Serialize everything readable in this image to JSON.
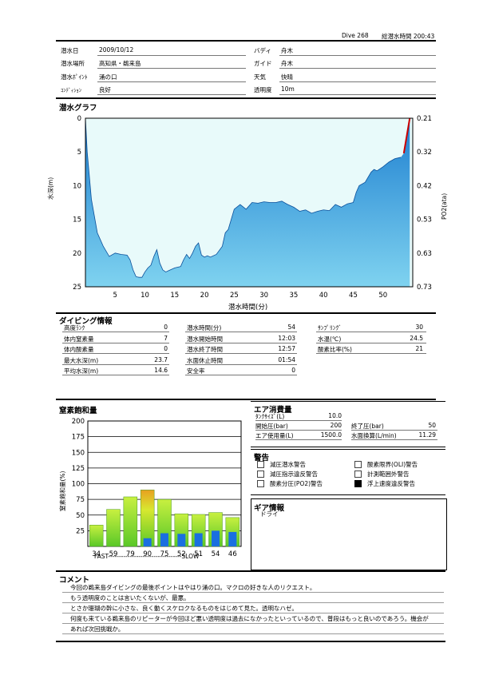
{
  "header": {
    "dive_label": "Dive 268",
    "total_label": "総潜水時間 200:43"
  },
  "info": {
    "rows": [
      {
        "label": "潜水日",
        "value": "2009/10/12",
        "label2": "バディ",
        "value2": "舟木"
      },
      {
        "label": "潜水場所",
        "value": "高知県・鵜来島",
        "label2": "ガイド",
        "value2": "舟木"
      },
      {
        "label": "潜水ﾎﾟｲﾝﾄ",
        "value": "涌の口",
        "label2": "天気",
        "value2": "快晴"
      },
      {
        "label": "ｺﾝﾃﾞｨｼｮﾝ",
        "value": "良好",
        "label2": "透明度",
        "value2": "10m"
      }
    ]
  },
  "graph": {
    "title": "潜水グラフ",
    "ylabel_left": "水深(m)",
    "ylabel_right": "PO2(ata)",
    "xlabel": "潜水時間(分)",
    "colors": {
      "water_top": "#1e7fd0",
      "water_bottom": "#7fd3f0",
      "sky": "#e8fafa",
      "ascent": "#cc0000"
    }
  },
  "chart_data": [
    {
      "type": "area",
      "title": "潜水グラフ",
      "xlabel": "潜水時間(分)",
      "ylabel": "水深(m)",
      "y2label": "PO2(ata)",
      "xlim": [
        0,
        55
      ],
      "ylim": [
        25,
        0
      ],
      "y2lim": [
        0.73,
        0.21
      ],
      "x_ticks": [
        "5",
        "10",
        "15",
        "20",
        "25",
        "30",
        "35",
        "40",
        "45",
        "50"
      ],
      "y_ticks": [
        "0",
        "5",
        "10",
        "15",
        "20",
        "25"
      ],
      "y2_ticks": [
        "0.21",
        "0.32",
        "0.42",
        "0.53",
        "0.63",
        "0.73"
      ],
      "x": [
        0,
        0.3,
        1,
        2,
        3,
        4,
        5,
        6,
        7,
        7.5,
        8,
        8.5,
        9,
        9.5,
        10,
        10.5,
        11,
        11.5,
        12,
        12.5,
        13,
        13.5,
        14,
        15,
        16,
        16.5,
        17,
        17.5,
        18,
        18.5,
        19,
        19.5,
        20,
        20.5,
        21,
        22,
        23,
        23.5,
        24,
        25,
        26,
        27,
        28,
        29,
        30,
        31,
        32,
        33,
        34,
        35,
        36,
        37,
        38,
        39,
        40,
        41,
        42,
        43,
        44,
        45,
        45.5,
        46,
        47,
        48,
        48.5,
        49,
        50,
        51,
        52,
        53,
        53.5,
        54,
        54.5
      ],
      "y": [
        0,
        5,
        12,
        17,
        19,
        20.5,
        20,
        20.2,
        20.3,
        21,
        22.5,
        23.5,
        23.6,
        23.6,
        22.8,
        22.2,
        21.8,
        20.5,
        19.5,
        21.5,
        22.5,
        22.8,
        22.6,
        22.2,
        22,
        21,
        20.2,
        20.8,
        20,
        19,
        18.5,
        20.3,
        20.6,
        20.4,
        20.6,
        20.2,
        19,
        17,
        16.5,
        13.5,
        12.8,
        13.5,
        12.5,
        12.6,
        12.4,
        12.5,
        12.5,
        12.3,
        12.8,
        13.2,
        13.8,
        13.6,
        14.1,
        13.8,
        13.6,
        13.7,
        12.8,
        13.2,
        12.7,
        12.5,
        11,
        10,
        9.5,
        8,
        7.6,
        7.8,
        7.2,
        6.5,
        6,
        5.8,
        5.2,
        2.6,
        0
      ]
    },
    {
      "type": "bar",
      "title": "窒素飽和量",
      "ylabel": "窒素飽和量(%)",
      "categories": [
        "34",
        "59",
        "79",
        "90",
        "75",
        "52",
        "51",
        "54",
        "46"
      ],
      "series": [
        {
          "values": [
            34,
            59,
            79,
            90,
            75,
            52,
            51,
            54,
            46
          ]
        },
        {
          "values": [
            0,
            0,
            0,
            13,
            21,
            20,
            21,
            25,
            23
          ]
        }
      ],
      "ylim": [
        0,
        200
      ],
      "y_ticks": [
        "25",
        "50",
        "75",
        "100",
        "125",
        "150",
        "175",
        "200"
      ],
      "footer": "FAST----------------------------------SLOW"
    }
  ],
  "diving_info": {
    "title": "ダイビング情報",
    "col1": [
      {
        "label": "高度ﾗﾝｸ",
        "value": "0"
      },
      {
        "label": "体内窒素量",
        "value": "7"
      },
      {
        "label": "体内酸素量",
        "value": "0"
      },
      {
        "label": "最大水深(m)",
        "value": "23.7"
      },
      {
        "label": "平均水深(m)",
        "value": "14.6"
      }
    ],
    "col2": [
      {
        "label": "潜水時間(分)",
        "value": "54"
      },
      {
        "label": "潜水開始時間",
        "value": "12:03"
      },
      {
        "label": "潜水終了時間",
        "value": "12:57"
      },
      {
        "label": "水面休止時間",
        "value": "01:54"
      },
      {
        "label": "安全率",
        "value": "0"
      }
    ],
    "col3": [
      {
        "label": "ｻﾝﾌﾟﾘﾝｸﾞ",
        "value": "30"
      },
      {
        "label": "水温(℃)",
        "value": "24.5"
      },
      {
        "label": "酸素比率(%)",
        "value": "21"
      }
    ]
  },
  "nitrogen": {
    "title": "窒素飽和量",
    "ylabel": "窒素飽和量(%)",
    "footer": "FAST----------------------------------SLOW"
  },
  "air": {
    "title": "エア消費量",
    "tank_label": "ﾀﾝｸｻｲｽﾞ(L)",
    "tank_value": "10.0",
    "start_label": "開始圧(bar)",
    "start_value": "200",
    "end_label": "終了圧(bar)",
    "end_value": "50",
    "used_label": "エア使用量(L)",
    "used_value": "1500.0",
    "surface_label": "水面換算(L/min)",
    "surface_value": "11.29"
  },
  "warnings": {
    "title": "警告",
    "items": [
      {
        "label": "減圧潜水警告",
        "checked": false
      },
      {
        "label": "酸素限界(OLI)警告",
        "checked": false
      },
      {
        "label": "減圧指示違反警告",
        "checked": false
      },
      {
        "label": "計測範囲外警告",
        "checked": false
      },
      {
        "label": "酸素分圧(PO2)警告",
        "checked": false
      },
      {
        "label": "浮上速度違反警告",
        "checked": true
      }
    ]
  },
  "gear": {
    "title": "ギア情報",
    "value": "ドライ"
  },
  "comment": {
    "title": "コメント",
    "lines": [
      "今回の鵜来島ダイビングの最後ポイントはやはり涌の口。マクロの好きな人のリクエスト。",
      "もう透明度のことは言いたくないが、最悪。",
      "とさか珊瑚の幹に小さな、良く動くスケロクなるものをはじめて見た。透明なハゼ。",
      "何度も来ている鵜来島のリピーターが今回ほど悪い透明度は過去になかったといっているので、普段はもっと良いのであろう。機会が",
      "あれば次回挑戦か。"
    ]
  }
}
